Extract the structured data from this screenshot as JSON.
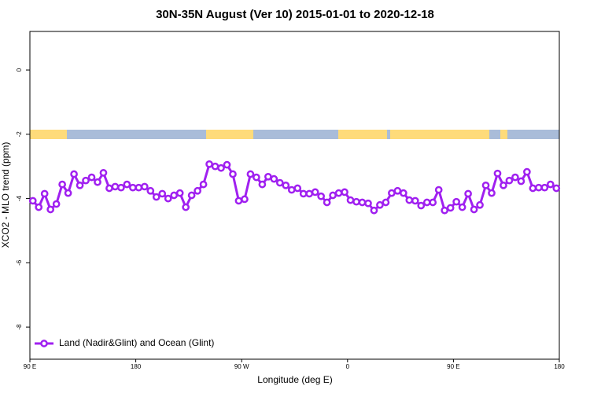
{
  "chart_data": {
    "type": "line",
    "title": "30N-35N August (Ver 10)   2015-01-01 to 2020-12-18",
    "x_label": "Longitude (deg E)",
    "y_label": "XCO2 - MLO trend (ppm)",
    "x": [
      92.5,
      97.5,
      102.5,
      107.5,
      112.5,
      117.5,
      122.5,
      127.5,
      132.5,
      137.5,
      142.5,
      147.5,
      152.5,
      157.5,
      162.5,
      167.5,
      172.5,
      177.5,
      182.5,
      187.5,
      192.5,
      197.5,
      202.5,
      207.5,
      212.5,
      217.5,
      222.5,
      227.5,
      232.5,
      237.5,
      242.5,
      247.5,
      252.5,
      257.5,
      262.5,
      267.5,
      272.5,
      277.5,
      282.5,
      287.5,
      292.5,
      297.5,
      302.5,
      307.5,
      312.5,
      317.5,
      322.5,
      327.5,
      332.5,
      337.5,
      342.5,
      347.5,
      352.5,
      357.5,
      362.5,
      367.5,
      372.5,
      377.5,
      382.5,
      387.5,
      392.5,
      397.5,
      402.5,
      407.5,
      412.5,
      417.5,
      422.5,
      427.5,
      432.5,
      437.5,
      442.5,
      447.5,
      452.5,
      457.5,
      462.5,
      467.5,
      472.5,
      477.5,
      482.5,
      487.5,
      492.5,
      497.5,
      502.5,
      507.5,
      512.5,
      517.5,
      522.5,
      527.5,
      532.5,
      537.5
    ],
    "series": [
      {
        "name": "Land (Nadir&Glint) and Ocean (Glint)",
        "color": "#a020f0",
        "values": [
          -4.07,
          -4.27,
          -3.85,
          -4.34,
          -4.17,
          -3.56,
          -3.83,
          -3.24,
          -3.59,
          -3.44,
          -3.34,
          -3.49,
          -3.2,
          -3.68,
          -3.63,
          -3.66,
          -3.56,
          -3.66,
          -3.66,
          -3.63,
          -3.76,
          -3.95,
          -3.85,
          -4.0,
          -3.9,
          -3.83,
          -4.27,
          -3.9,
          -3.76,
          -3.56,
          -2.93,
          -3.0,
          -3.05,
          -2.95,
          -3.24,
          -4.07,
          -4.02,
          -3.24,
          -3.34,
          -3.56,
          -3.32,
          -3.39,
          -3.51,
          -3.59,
          -3.73,
          -3.68,
          -3.85,
          -3.85,
          -3.8,
          -3.93,
          -4.12,
          -3.9,
          -3.83,
          -3.8,
          -4.05,
          -4.1,
          -4.12,
          -4.15,
          -4.37,
          -4.2,
          -4.12,
          -3.83,
          -3.76,
          -3.83,
          -4.05,
          -4.07,
          -4.22,
          -4.12,
          -4.12,
          -3.73,
          -4.37,
          -4.29,
          -4.1,
          -4.27,
          -3.85,
          -4.34,
          -4.2,
          -3.59,
          -3.83,
          -3.22,
          -3.59,
          -3.44,
          -3.34,
          -3.46,
          -3.17,
          -3.68,
          -3.66,
          -3.66,
          -3.56,
          -3.68
        ]
      }
    ],
    "xlim": [
      90,
      540
    ],
    "xticks": [
      {
        "value": 90,
        "label": "90 E"
      },
      180,
      {
        "value": 270,
        "label": "90 W"
      },
      {
        "value": 360,
        "label": "0"
      },
      {
        "value": 450,
        "label": "90 E"
      },
      {
        "value": 540,
        "label": "180"
      }
    ],
    "ylim": [
      -9,
      1.2
    ],
    "yticks": [
      0,
      -2,
      -4,
      -6,
      -8
    ],
    "legend": "bottom-left"
  }
}
